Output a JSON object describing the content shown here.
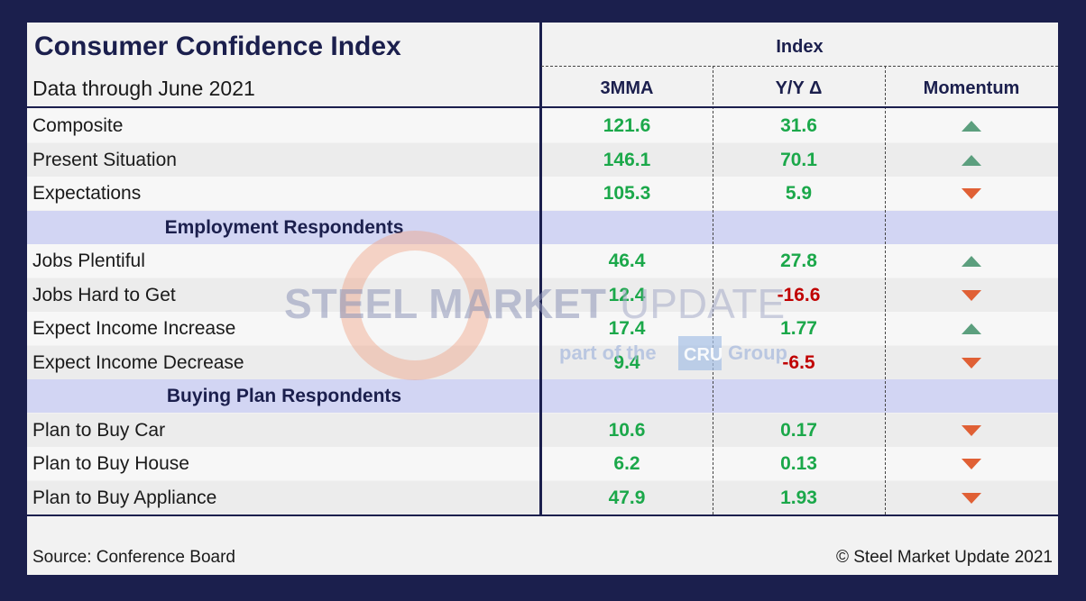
{
  "chart_data": {
    "type": "table",
    "title": "Consumer Confidence Index",
    "subtitle": "Data through June 2021",
    "group_header": "Index",
    "columns": [
      "3MMA",
      "Y/Y Δ",
      "Momentum"
    ],
    "rows": [
      {
        "label": "Composite",
        "mma": "121.6",
        "yy": "31.6",
        "momentum": "up",
        "yy_neg": false
      },
      {
        "label": "Present Situation",
        "mma": "146.1",
        "yy": "70.1",
        "momentum": "up",
        "yy_neg": false
      },
      {
        "label": "Expectations",
        "mma": "105.3",
        "yy": "5.9",
        "momentum": "down",
        "yy_neg": false
      },
      {
        "section": "Employment Respondents"
      },
      {
        "label": "Jobs Plentiful",
        "mma": "46.4",
        "yy": "27.8",
        "momentum": "up",
        "yy_neg": false
      },
      {
        "label": "Jobs Hard to Get",
        "mma": "12.4",
        "yy": "-16.6",
        "momentum": "down",
        "yy_neg": true
      },
      {
        "label": "Expect Income Increase",
        "mma": "17.4",
        "yy": "1.77",
        "momentum": "up",
        "yy_neg": false
      },
      {
        "label": "Expect Income Decrease",
        "mma": "9.4",
        "yy": "-6.5",
        "momentum": "down",
        "yy_neg": true
      },
      {
        "section": "Buying Plan Respondents"
      },
      {
        "label": "Plan to Buy Car",
        "mma": "10.6",
        "yy": "0.17",
        "momentum": "down",
        "yy_neg": false
      },
      {
        "label": "Plan to Buy House",
        "mma": "6.2",
        "yy": "0.13",
        "momentum": "down",
        "yy_neg": false
      },
      {
        "label": "Plan to Buy Appliance",
        "mma": "47.9",
        "yy": "1.93",
        "momentum": "down",
        "yy_neg": false
      }
    ]
  },
  "footer": {
    "source": "Source: Conference Board",
    "copyright": "© Steel Market Update 2021"
  },
  "watermark": {
    "line1_bold": "STEEL MARKET",
    "line1_light": "UPDATE",
    "line2_pre": "part of the",
    "line2_badge": "CRU",
    "line2_post": "Group"
  },
  "colors": {
    "positive": "#1ba84a",
    "negative": "#c00000",
    "arrow_up": "#5c9f7e",
    "arrow_down": "#e06035",
    "section_bg": "#d2d5f3",
    "frame": "#1b1f4d"
  }
}
